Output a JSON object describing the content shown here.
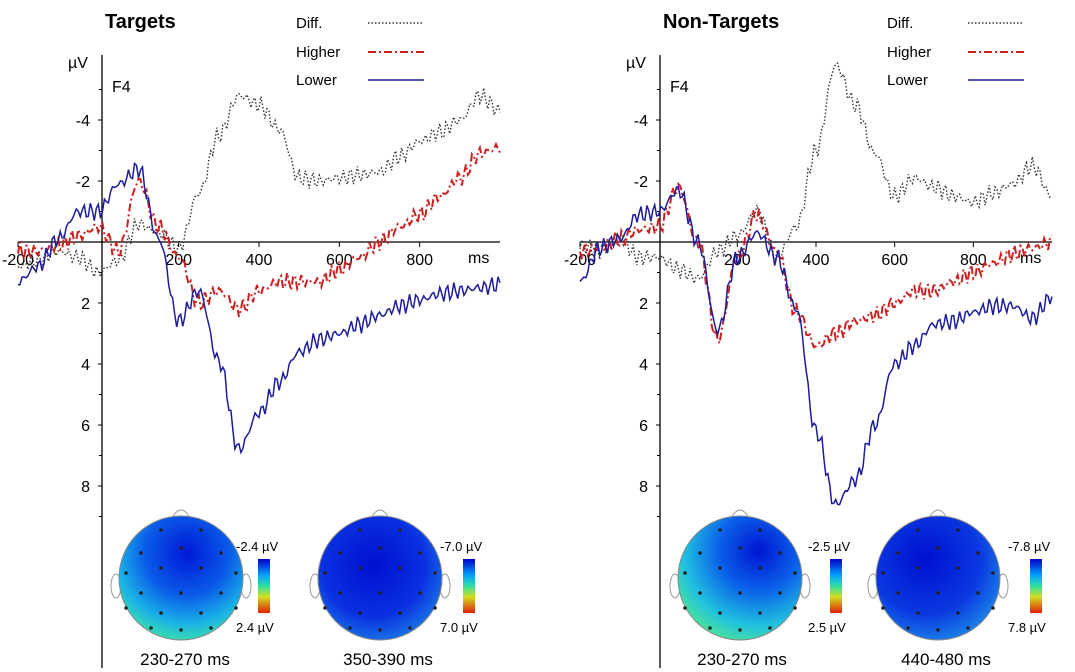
{
  "chart_data": [
    {
      "type": "line",
      "title": "Targets",
      "electrode": "F4",
      "ylabel": "µV",
      "xlabel": "ms",
      "xlim": [
        -200,
        1000
      ],
      "ylim": [
        -6,
        9
      ],
      "y_inverted": true,
      "x_ticks": [
        "-200",
        "200",
        "400",
        "600",
        "800"
      ],
      "y_ticks": [
        "-4",
        "-2",
        "2",
        "4",
        "6",
        "8"
      ],
      "legend": [
        "Diff.",
        "Higher",
        "Lower"
      ],
      "legend_position": "top-right",
      "series": [
        {
          "name": "Diff.",
          "color": "#333333",
          "x": [
            -200,
            -150,
            -100,
            -50,
            0,
            50,
            100,
            150,
            200,
            250,
            300,
            350,
            400,
            450,
            500,
            550,
            600,
            650,
            700,
            750,
            800,
            850,
            900,
            950,
            1000
          ],
          "y": [
            0.8,
            0.6,
            0.3,
            0.5,
            1.0,
            0.6,
            -0.6,
            -0.3,
            0.2,
            -1.6,
            -3.5,
            -4.8,
            -4.5,
            -3.7,
            -2.1,
            -2.0,
            -2.1,
            -2.2,
            -2.3,
            -2.8,
            -3.3,
            -3.6,
            -4.0,
            -4.8,
            -4.3
          ]
        },
        {
          "name": "Higher",
          "color": "#cc2020",
          "x": [
            -200,
            -150,
            -100,
            -50,
            0,
            50,
            100,
            150,
            200,
            250,
            300,
            350,
            400,
            450,
            500,
            550,
            600,
            650,
            700,
            750,
            800,
            850,
            900,
            950,
            1000
          ],
          "y": [
            0.3,
            0.3,
            0.1,
            -0.2,
            -0.5,
            0.3,
            -2.0,
            -0.5,
            0.5,
            2.0,
            1.6,
            2.2,
            1.6,
            1.3,
            1.3,
            1.3,
            0.9,
            0.5,
            0.0,
            -0.5,
            -0.9,
            -1.5,
            -2.1,
            -2.9,
            -3.1
          ]
        },
        {
          "name": "Lower",
          "color": "#1c1c9c",
          "x": [
            -200,
            -150,
            -100,
            -50,
            0,
            50,
            100,
            150,
            200,
            250,
            300,
            350,
            400,
            450,
            500,
            550,
            600,
            650,
            700,
            750,
            800,
            850,
            900,
            950,
            1000
          ],
          "y": [
            1.3,
            0.8,
            -0.1,
            -1.0,
            -1.0,
            -1.9,
            -2.4,
            -0.1,
            2.6,
            1.6,
            3.9,
            6.8,
            5.6,
            4.6,
            3.6,
            3.2,
            3.0,
            2.7,
            2.4,
            2.1,
            1.9,
            1.7,
            1.6,
            1.5,
            1.4
          ]
        }
      ]
    },
    {
      "type": "line",
      "title": "Non-Targets",
      "electrode": "F4",
      "ylabel": "µV",
      "xlabel": "ms",
      "xlim": [
        -200,
        1000
      ],
      "ylim": [
        -6,
        9
      ],
      "y_inverted": true,
      "x_ticks": [
        "-200",
        "200",
        "400",
        "600",
        "800"
      ],
      "y_ticks": [
        "-4",
        "-2",
        "2",
        "4",
        "6",
        "8"
      ],
      "legend": [
        "Diff.",
        "Higher",
        "Lower"
      ],
      "legend_position": "top-right",
      "series": [
        {
          "name": "Diff.",
          "color": "#333333",
          "x": [
            -200,
            -150,
            -100,
            -50,
            0,
            50,
            100,
            150,
            200,
            250,
            300,
            350,
            400,
            450,
            500,
            550,
            600,
            650,
            700,
            750,
            800,
            850,
            900,
            950,
            1000
          ],
          "y": [
            0.1,
            0.3,
            -0.1,
            0.5,
            0.5,
            0.9,
            1.2,
            0.3,
            -0.2,
            -1.0,
            0.5,
            -0.5,
            -3.0,
            -5.8,
            -4.5,
            -2.9,
            -1.5,
            -2.1,
            -1.8,
            -1.5,
            -1.3,
            -1.6,
            -1.9,
            -2.5,
            -1.5
          ]
        },
        {
          "name": "Higher",
          "color": "#cc2020",
          "x": [
            -200,
            -150,
            -100,
            -50,
            0,
            50,
            100,
            150,
            200,
            250,
            300,
            350,
            400,
            450,
            500,
            550,
            600,
            650,
            700,
            750,
            800,
            850,
            900,
            950,
            1000
          ],
          "y": [
            0.3,
            0.2,
            -0.1,
            -0.4,
            -0.5,
            -1.8,
            0.0,
            3.2,
            0.5,
            -0.9,
            0.3,
            2.3,
            3.4,
            3.0,
            2.6,
            2.4,
            2.0,
            1.6,
            1.6,
            1.3,
            1.0,
            0.7,
            0.4,
            0.2,
            0.0
          ]
        },
        {
          "name": "Lower",
          "color": "#1c1c9c",
          "x": [
            -200,
            -150,
            -100,
            -50,
            0,
            50,
            100,
            150,
            200,
            250,
            300,
            350,
            400,
            450,
            500,
            550,
            600,
            650,
            700,
            750,
            800,
            850,
            900,
            950,
            1000
          ],
          "y": [
            1.3,
            0.2,
            -0.1,
            -0.9,
            -1.0,
            -1.7,
            0.0,
            2.9,
            0.5,
            -0.3,
            0.5,
            2.2,
            6.2,
            8.6,
            7.8,
            6.0,
            4.0,
            3.4,
            2.7,
            2.6,
            2.3,
            2.1,
            2.1,
            2.5,
            1.8
          ]
        }
      ]
    }
  ],
  "topomaps": [
    {
      "caption": "230-270 ms",
      "scale_max": "-2.4 µV",
      "scale_min": "2.4 µV"
    },
    {
      "caption": "350-390 ms",
      "scale_max": "-7.0 µV",
      "scale_min": "7.0 µV"
    },
    {
      "caption": "230-270 ms",
      "scale_max": "-2.5 µV",
      "scale_min": "2.5 µV"
    },
    {
      "caption": "440-480 ms",
      "scale_max": "-7.8 µV",
      "scale_min": "7.8 µV"
    }
  ]
}
